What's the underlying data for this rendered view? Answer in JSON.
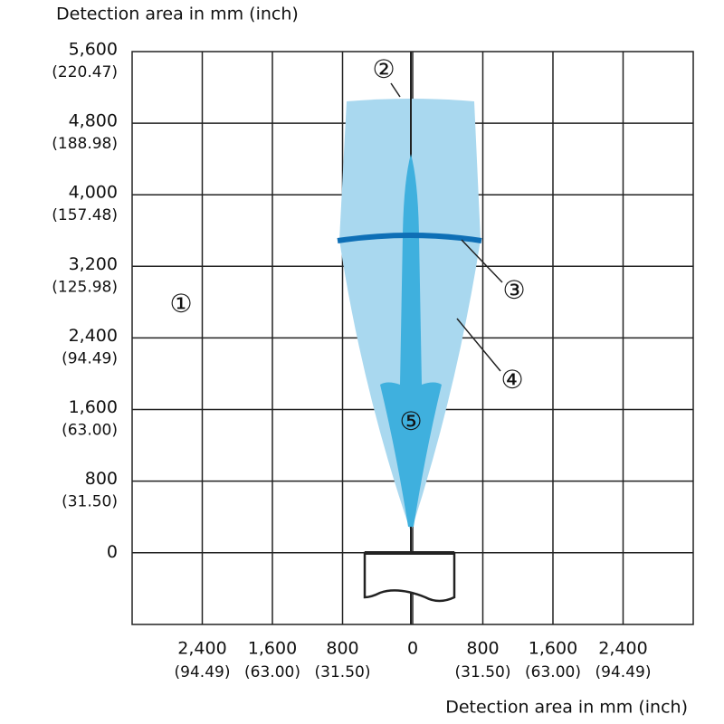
{
  "y_axis": {
    "title": "Detection area in mm (inch)",
    "ticks": [
      {
        "mm": "5,600",
        "inch": "(220.47)"
      },
      {
        "mm": "4,800",
        "inch": "(188.98)"
      },
      {
        "mm": "4,000",
        "inch": "(157.48)"
      },
      {
        "mm": "3,200",
        "inch": "(125.98)"
      },
      {
        "mm": "2,400",
        "inch": "(94.49)"
      },
      {
        "mm": "1,600",
        "inch": "(63.00)"
      },
      {
        "mm": "800",
        "inch": "(31.50)"
      },
      {
        "mm": "0"
      }
    ]
  },
  "x_axis": {
    "title": "Detection area in mm (inch)",
    "ticks": [
      {
        "mm": "2,400",
        "inch": "(94.49)"
      },
      {
        "mm": "1,600",
        "inch": "(63.00)"
      },
      {
        "mm": "800",
        "inch": "(31.50)"
      },
      {
        "mm": "0"
      },
      {
        "mm": "800",
        "inch": "(31.50)"
      },
      {
        "mm": "1,600",
        "inch": "(63.00)"
      },
      {
        "mm": "2,400",
        "inch": "(94.49)"
      }
    ]
  },
  "callouts": [
    "①",
    "②",
    "③",
    "④",
    "⑤"
  ]
}
